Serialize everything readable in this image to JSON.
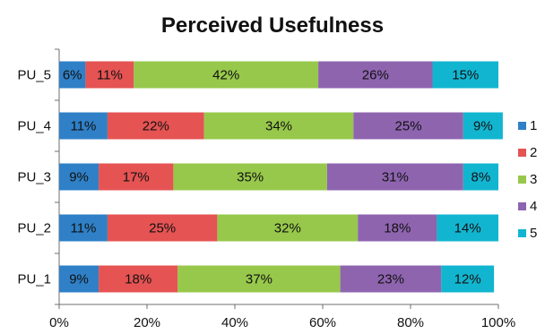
{
  "chart_data": {
    "type": "bar",
    "orientation": "horizontal",
    "stacked": true,
    "title": "Perceived Usefulness",
    "categories": [
      "PU_5",
      "PU_4",
      "PU_3",
      "PU_2",
      "PU_1"
    ],
    "series": [
      {
        "name": "1",
        "color": "#2F80C7",
        "values": [
          6,
          11,
          9,
          11,
          9
        ],
        "labels": [
          "6%",
          "11%",
          "9%",
          "11%",
          "9%"
        ]
      },
      {
        "name": "2",
        "color": "#E55353",
        "values": [
          11,
          22,
          17,
          25,
          18
        ],
        "labels": [
          "11%",
          "22%",
          "17%",
          "25%",
          "18%"
        ]
      },
      {
        "name": "3",
        "color": "#97C84B",
        "values": [
          42,
          34,
          35,
          32,
          37
        ],
        "labels": [
          "42%",
          "34%",
          "35%",
          "32%",
          "37%"
        ]
      },
      {
        "name": "4",
        "color": "#8E64AF",
        "values": [
          26,
          25,
          31,
          18,
          23
        ],
        "labels": [
          "26%",
          "25%",
          "31%",
          "18%",
          "23%"
        ]
      },
      {
        "name": "5",
        "color": "#12B5D0",
        "values": [
          15,
          9,
          8,
          14,
          12
        ],
        "labels": [
          "15%",
          "9%",
          "8%",
          "14%",
          "12%"
        ]
      }
    ],
    "x_ticks": [
      "0%",
      "20%",
      "40%",
      "60%",
      "80%",
      "100%"
    ],
    "xlim": [
      0,
      100
    ],
    "grid": false,
    "legend_position": "right"
  }
}
